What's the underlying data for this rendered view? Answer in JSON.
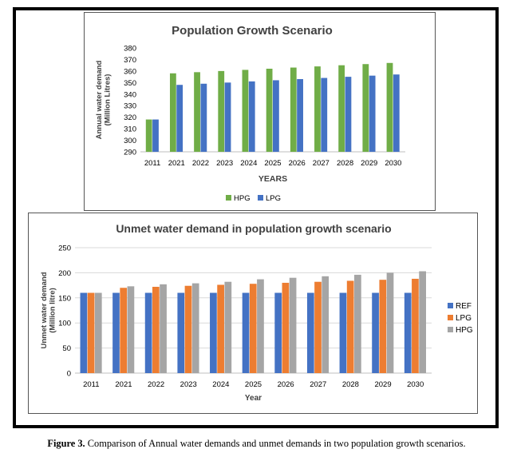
{
  "colors": {
    "green": "#70ad47",
    "blue": "#4472c4",
    "orange": "#ed7d31",
    "gray": "#a5a5a5",
    "grid": "#d9d9d9",
    "text": "#000000"
  },
  "caption": {
    "label": "Figure 3.",
    "text": " Comparison of Annual water demands and unmet demands in two population growth scenarios."
  },
  "chart_data": [
    {
      "type": "bar",
      "title": "Population Growth Scenario",
      "xlabel": "YEARS",
      "ylabel": [
        "Annual water demand",
        "(Million Litres)"
      ],
      "ylim": [
        290,
        380
      ],
      "yticks": [
        "290",
        "300",
        "310",
        "320",
        "330",
        "340",
        "350",
        "360",
        "370",
        "380"
      ],
      "grid": false,
      "legend_position": "bottom",
      "categories": [
        "2011",
        "2021",
        "2022",
        "2023",
        "2024",
        "2025",
        "2026",
        "2027",
        "2028",
        "2029",
        "2030"
      ],
      "series": [
        {
          "name": "HPG",
          "color": "#70ad47",
          "values": [
            318,
            358,
            359,
            360,
            361,
            362,
            363,
            364,
            365,
            366,
            367
          ]
        },
        {
          "name": "LPG",
          "color": "#4472c4",
          "values": [
            318,
            348,
            349,
            350,
            351,
            352,
            353,
            354,
            355,
            356,
            357
          ]
        }
      ]
    },
    {
      "type": "bar",
      "title": "Unmet water demand in population growth scenario",
      "xlabel": "Year",
      "ylabel": [
        "Unmet water demand",
        "(Million litre)"
      ],
      "ylim": [
        0,
        250
      ],
      "yticks": [
        "0",
        "50",
        "100",
        "150",
        "200",
        "250"
      ],
      "grid": true,
      "legend_position": "right",
      "categories": [
        "2011",
        "2021",
        "2022",
        "2023",
        "2024",
        "2025",
        "2026",
        "2027",
        "2028",
        "2029",
        "2030"
      ],
      "series": [
        {
          "name": "REF",
          "color": "#4472c4",
          "values": [
            160,
            160,
            160,
            160,
            160,
            160,
            160,
            160,
            160,
            160,
            160
          ]
        },
        {
          "name": "LPG",
          "color": "#ed7d31",
          "values": [
            160,
            170,
            172,
            174,
            176,
            178,
            180,
            182,
            184,
            186,
            188
          ]
        },
        {
          "name": "HPG",
          "color": "#a5a5a5",
          "values": [
            160,
            173,
            177,
            179,
            182,
            187,
            190,
            193,
            196,
            200,
            203
          ]
        }
      ]
    }
  ]
}
